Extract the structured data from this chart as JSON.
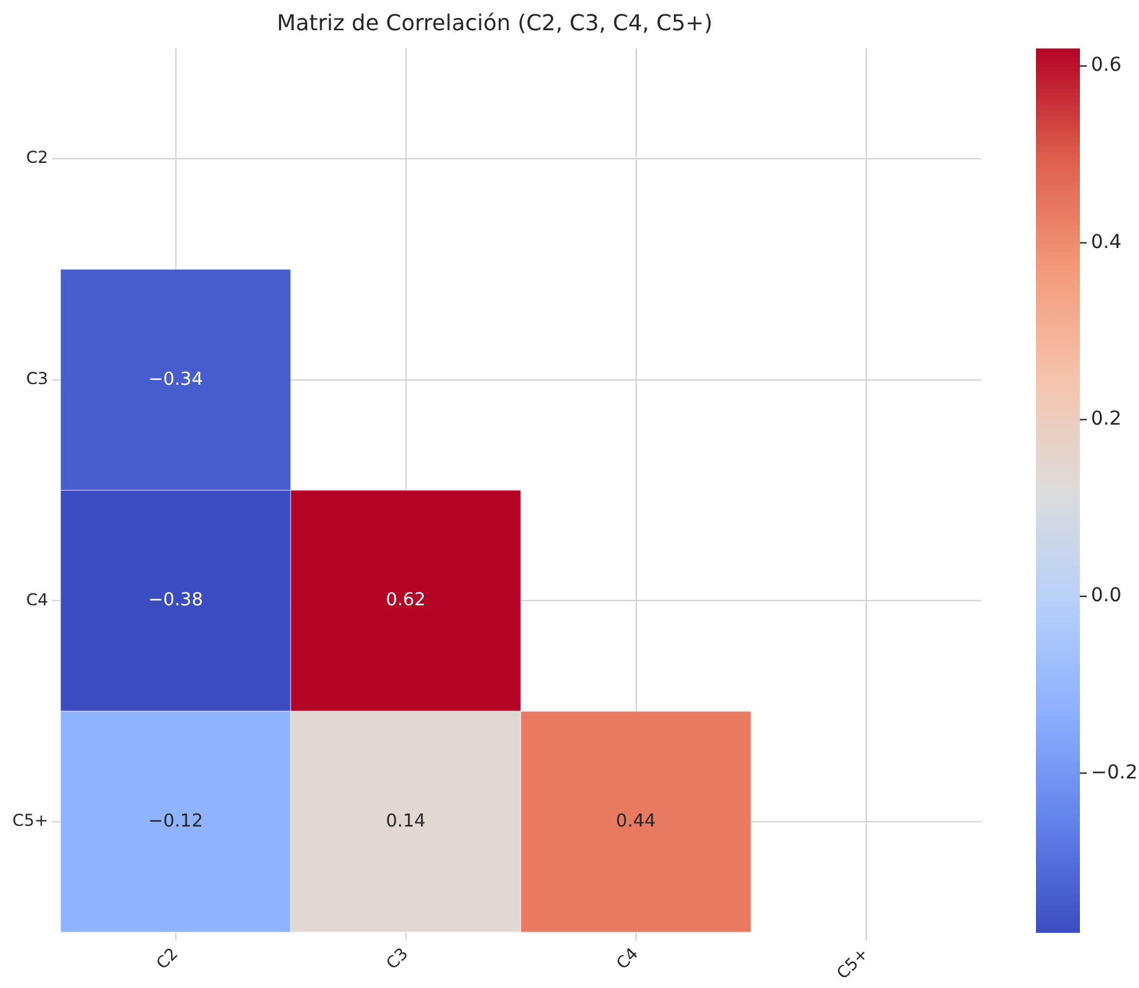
{
  "chart_data": {
    "type": "heatmap",
    "title": "Matriz de Correlación (C2, C3, C4, C5+)",
    "categories": [
      "C2",
      "C3",
      "C4",
      "C5+"
    ],
    "y_categories": [
      "C2",
      "C3",
      "C4",
      "C5+"
    ],
    "cells": [
      [
        null,
        null,
        null,
        null
      ],
      [
        -0.34,
        null,
        null,
        null
      ],
      [
        -0.38,
        0.62,
        null,
        null
      ],
      [
        -0.12,
        0.14,
        0.44,
        null
      ]
    ],
    "clim": [
      -0.38,
      0.62
    ],
    "cticks": [
      {
        "value": -0.2,
        "label": "−0.2"
      },
      {
        "value": 0,
        "label": "0.0"
      },
      {
        "value": 0.2,
        "label": "0.2"
      },
      {
        "value": 0.4,
        "label": "0.4"
      },
      {
        "value": 0.6,
        "label": "0.6"
      }
    ],
    "data_labels": true,
    "grid": true
  }
}
